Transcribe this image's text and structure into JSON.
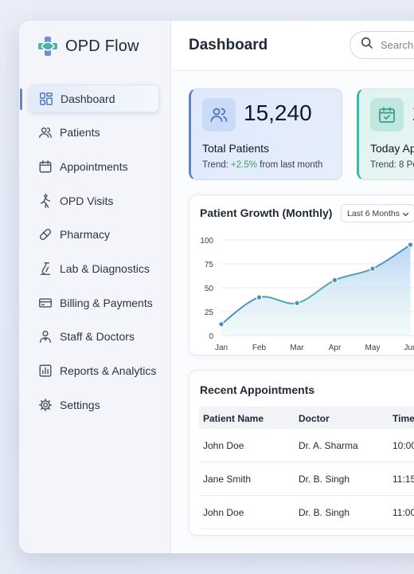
{
  "app": {
    "name": "OPD Flow"
  },
  "sidebar": {
    "items": [
      {
        "label": "Dashboard",
        "icon": "dashboard-grid-icon",
        "active": true
      },
      {
        "label": "Patients",
        "icon": "users-icon"
      },
      {
        "label": "Appointments",
        "icon": "calendar-icon"
      },
      {
        "label": "OPD Visits",
        "icon": "walking-person-icon"
      },
      {
        "label": "Pharmacy",
        "icon": "pill-icon"
      },
      {
        "label": "Lab & Diagnostics",
        "icon": "flask-icon"
      },
      {
        "label": "Billing & Payments",
        "icon": "credit-card-icon"
      },
      {
        "label": "Staff & Doctors",
        "icon": "doctor-icon"
      },
      {
        "label": "Reports & Analytics",
        "icon": "bar-chart-icon"
      },
      {
        "label": "Settings",
        "icon": "gear-icon"
      }
    ]
  },
  "header": {
    "title": "Dashboard",
    "search_placeholder": "Search"
  },
  "stats": [
    {
      "value": "15,240",
      "label": "Total Patients",
      "trend_prefix": "Trend: ",
      "trend_change": "+2.5%",
      "trend_suffix": " from last month",
      "icon": "users-icon"
    },
    {
      "value": "1",
      "label": "Today Ap",
      "trend_prefix": "Trend: 8 Pe",
      "trend_change": "",
      "trend_suffix": "",
      "icon": "calendar-check-icon"
    }
  ],
  "growth": {
    "title": "Patient Growth (Monthly)",
    "range_selected": "Last 6 Months"
  },
  "chart_data": {
    "type": "area",
    "title": "Patient Growth (Monthly)",
    "categories": [
      "Jan",
      "Feb",
      "Mar",
      "Apr",
      "May",
      "Jun"
    ],
    "values": [
      12,
      40,
      34,
      58,
      70,
      95
    ],
    "yticks": [
      0,
      25,
      50,
      75,
      100
    ],
    "ylim": [
      0,
      100
    ],
    "grid": true,
    "colors": {
      "line": "#4aa0b5",
      "point": "#4a8fc4",
      "fill_top": "#b8d3f3",
      "fill_bottom": "#e6f5f3"
    }
  },
  "appointments": {
    "title": "Recent Appointments",
    "columns": [
      "Patient Name",
      "Doctor",
      "Time"
    ],
    "rows": [
      {
        "patient": "John Doe",
        "doctor": "Dr. A. Sharma",
        "time": "10:00"
      },
      {
        "patient": "Jane Smith",
        "doctor": "Dr. B. Singh",
        "time": "11:15"
      },
      {
        "patient": "John Doe",
        "doctor": "Dr. B. Singh",
        "time": "11:00"
      }
    ]
  }
}
